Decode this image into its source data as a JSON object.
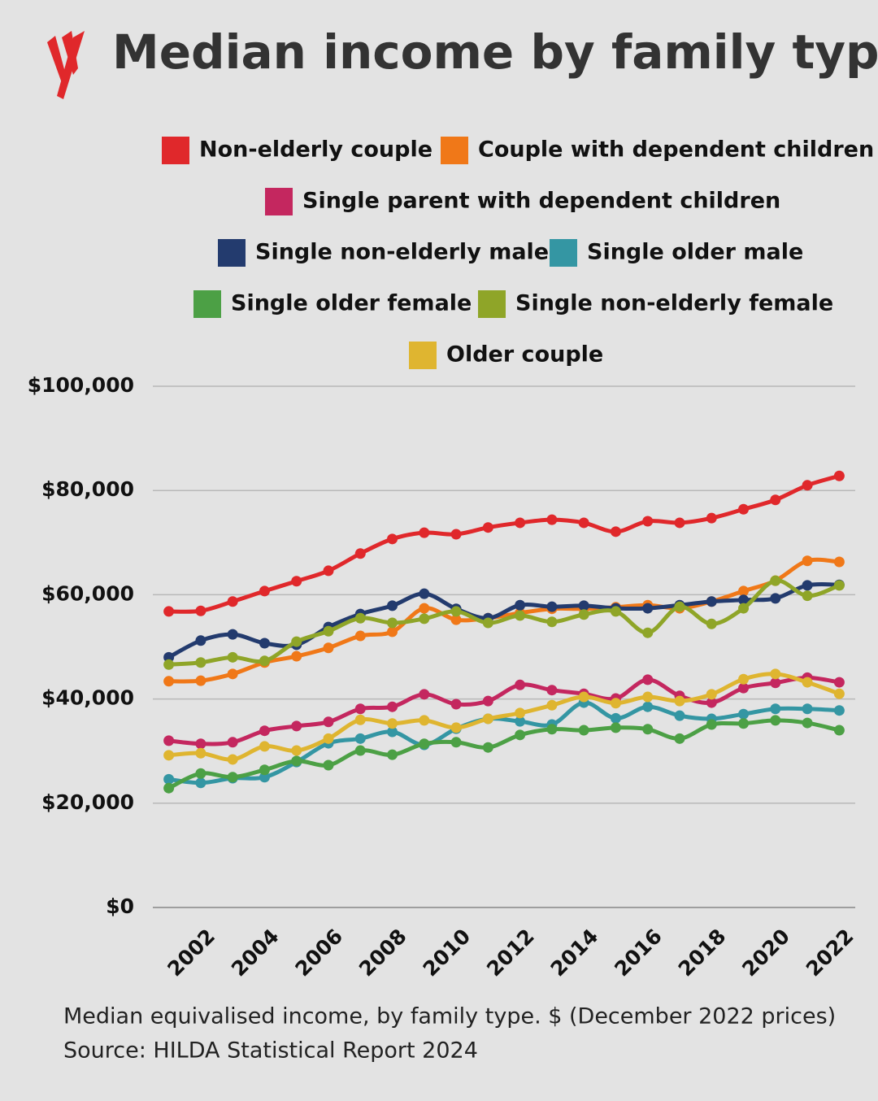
{
  "chart_data": {
    "type": "line",
    "title": "Median income by family type",
    "caption": "Median equivalised income, by family type. $ (December 2022 prices)",
    "source": "Source: HILDA Statistical Report 2024",
    "x": [
      2001,
      2002,
      2003,
      2004,
      2005,
      2006,
      2007,
      2008,
      2009,
      2010,
      2011,
      2012,
      2013,
      2014,
      2015,
      2016,
      2017,
      2018,
      2019,
      2020,
      2021,
      2022
    ],
    "xlim": [
      2000.5,
      2022.5
    ],
    "xticks": [
      2002,
      2004,
      2006,
      2008,
      2010,
      2012,
      2014,
      2016,
      2018,
      2020,
      2022
    ],
    "ylim": [
      0,
      100000
    ],
    "yticks": [
      {
        "value": 0,
        "label": "$0"
      },
      {
        "value": 20000,
        "label": "$20,000"
      },
      {
        "value": 40000,
        "label": "$40,000"
      },
      {
        "value": 60000,
        "label": "$60,000"
      },
      {
        "value": 80000,
        "label": "$80,000"
      },
      {
        "value": 100000,
        "label": "$100,000"
      }
    ],
    "grid": true,
    "legend": "top",
    "series": [
      {
        "name": "Non-elderly couple",
        "color": "#e0282b",
        "values": [
          56800,
          56900,
          58700,
          60700,
          62600,
          64600,
          67900,
          70700,
          71900,
          71600,
          72900,
          73800,
          74400,
          73800,
          72100,
          74100,
          73800,
          74700,
          76400,
          78200,
          81000,
          82800
        ]
      },
      {
        "name": "Couple with dependent children",
        "color": "#f07818",
        "values": [
          43400,
          43500,
          44800,
          47000,
          48200,
          49800,
          52100,
          52900,
          57400,
          55200,
          55500,
          56500,
          57300,
          57300,
          57600,
          58000,
          57400,
          58700,
          60700,
          62700,
          66500,
          66300
        ]
      },
      {
        "name": "Single parent with dependent children",
        "color": "#c4275f",
        "values": [
          32000,
          31400,
          31700,
          33900,
          34800,
          35600,
          38100,
          38500,
          40900,
          39000,
          39600,
          42700,
          41700,
          41000,
          40100,
          43700,
          40600,
          39300,
          42100,
          43100,
          44100,
          43200
        ]
      },
      {
        "name": "Single non-elderly male",
        "color": "#233b6e",
        "values": [
          48000,
          51200,
          52400,
          50700,
          50400,
          53800,
          56300,
          57900,
          60200,
          57300,
          55500,
          58000,
          57700,
          57900,
          57400,
          57400,
          58000,
          58700,
          59000,
          59300,
          61800,
          61900
        ]
      },
      {
        "name": "Single older male",
        "color": "#3496a3",
        "values": [
          24600,
          23900,
          24800,
          25000,
          27900,
          31500,
          32400,
          33700,
          31200,
          34300,
          36200,
          35700,
          35100,
          39300,
          36300,
          38500,
          36800,
          36200,
          37100,
          38100,
          38100,
          37800
        ]
      },
      {
        "name": "Single older female",
        "color": "#4ca045",
        "values": [
          22900,
          25700,
          25000,
          26400,
          28100,
          27300,
          30100,
          29300,
          31400,
          31700,
          30700,
          33100,
          34200,
          34000,
          34500,
          34200,
          32400,
          35100,
          35300,
          35900,
          35400,
          34000
        ]
      },
      {
        "name": "Single non-elderly female",
        "color": "#8fa528",
        "values": [
          46600,
          47000,
          48000,
          47300,
          51000,
          53000,
          55500,
          54600,
          55400,
          56800,
          54600,
          56000,
          54800,
          56200,
          56800,
          52700,
          57700,
          54400,
          57400,
          62700,
          59800,
          61800
        ]
      },
      {
        "name": "Older couple",
        "color": "#dfb530",
        "values": [
          29200,
          29600,
          28400,
          30900,
          30100,
          32400,
          36000,
          35300,
          35900,
          34500,
          36200,
          37300,
          38800,
          40400,
          39200,
          40400,
          39600,
          40900,
          43800,
          44800,
          43200,
          41000
        ]
      }
    ]
  }
}
